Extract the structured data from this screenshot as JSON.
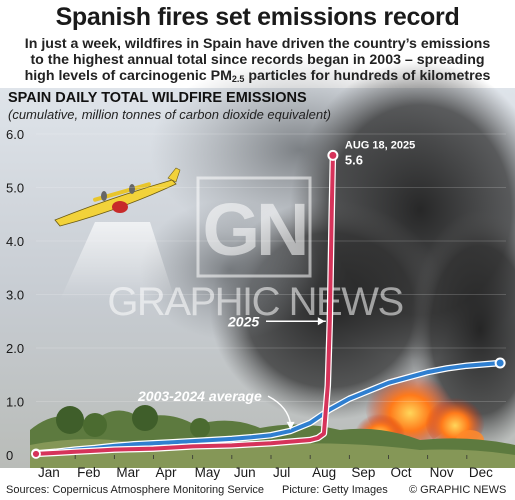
{
  "header": {
    "title": "Spanish fires set emissions record",
    "subtitle_lines": [
      "In just a week, wildfires in Spain have driven the country’s emissions",
      "to the highest annual total since records began in 2003 – spreading",
      "high levels of carcinogenic PM"
    ],
    "subtitle_pm_sub": "2.5",
    "subtitle_tail": " particles for hundreds of kilometres"
  },
  "watermark": {
    "logo": "GN",
    "text": "GRAPHIC NEWS"
  },
  "colors": {
    "series_2025": "#d6335a",
    "series_avg": "#2f7fd0",
    "fire": "#ff7a1a",
    "smoke": "#2b2b2b"
  },
  "chart_data": {
    "type": "line",
    "title": "SPAIN DAILY TOTAL WILDFIRE EMISSIONS",
    "subtitle": "(cumulative, million tonnes of carbon dioxide equivalent)",
    "xlabel": "",
    "ylabel": "",
    "xlim": [
      0,
      12
    ],
    "ylim": [
      0,
      6
    ],
    "y_ticks": [
      "6.0",
      "5.0",
      "4.0",
      "3.0",
      "2.0",
      "1.0",
      "0"
    ],
    "x_ticks": [
      "Jan",
      "Feb",
      "Mar",
      "Apr",
      "May",
      "Jun",
      "Jul",
      "Aug",
      "Sep",
      "Oct",
      "Nov",
      "Dec"
    ],
    "series": [
      {
        "name": "2003-2024 average",
        "x": [
          0,
          0.5,
          1,
          1.5,
          2,
          2.5,
          3,
          3.5,
          4,
          4.5,
          5,
          5.5,
          6,
          6.5,
          7,
          7.5,
          8,
          8.5,
          9,
          9.5,
          10,
          10.5,
          11,
          11.5,
          11.85
        ],
        "y": [
          0.03,
          0.06,
          0.1,
          0.13,
          0.17,
          0.2,
          0.22,
          0.24,
          0.26,
          0.28,
          0.3,
          0.33,
          0.37,
          0.45,
          0.6,
          0.85,
          1.05,
          1.2,
          1.35,
          1.45,
          1.55,
          1.62,
          1.67,
          1.7,
          1.72
        ]
      },
      {
        "name": "2025",
        "x": [
          0,
          0.5,
          1,
          1.5,
          2,
          2.5,
          3,
          3.5,
          4,
          4.5,
          5,
          5.5,
          6,
          6.5,
          7,
          7.2,
          7.35,
          7.45,
          7.5,
          7.55,
          7.58
        ],
        "y": [
          0.02,
          0.04,
          0.06,
          0.08,
          0.1,
          0.11,
          0.12,
          0.14,
          0.16,
          0.17,
          0.18,
          0.2,
          0.22,
          0.25,
          0.28,
          0.32,
          0.4,
          1.3,
          2.5,
          4.5,
          5.6
        ]
      }
    ],
    "annotations": {
      "peak_date": "AUG 18, 2025",
      "peak_value": "5.6",
      "label_2025": "2025",
      "label_avg": "2003-2024 average"
    }
  },
  "footer": {
    "sources": "Sources: Copernicus Atmosphere Monitoring Service",
    "picture": "Picture: Getty Images",
    "copyright": "© GRAPHIC NEWS"
  }
}
